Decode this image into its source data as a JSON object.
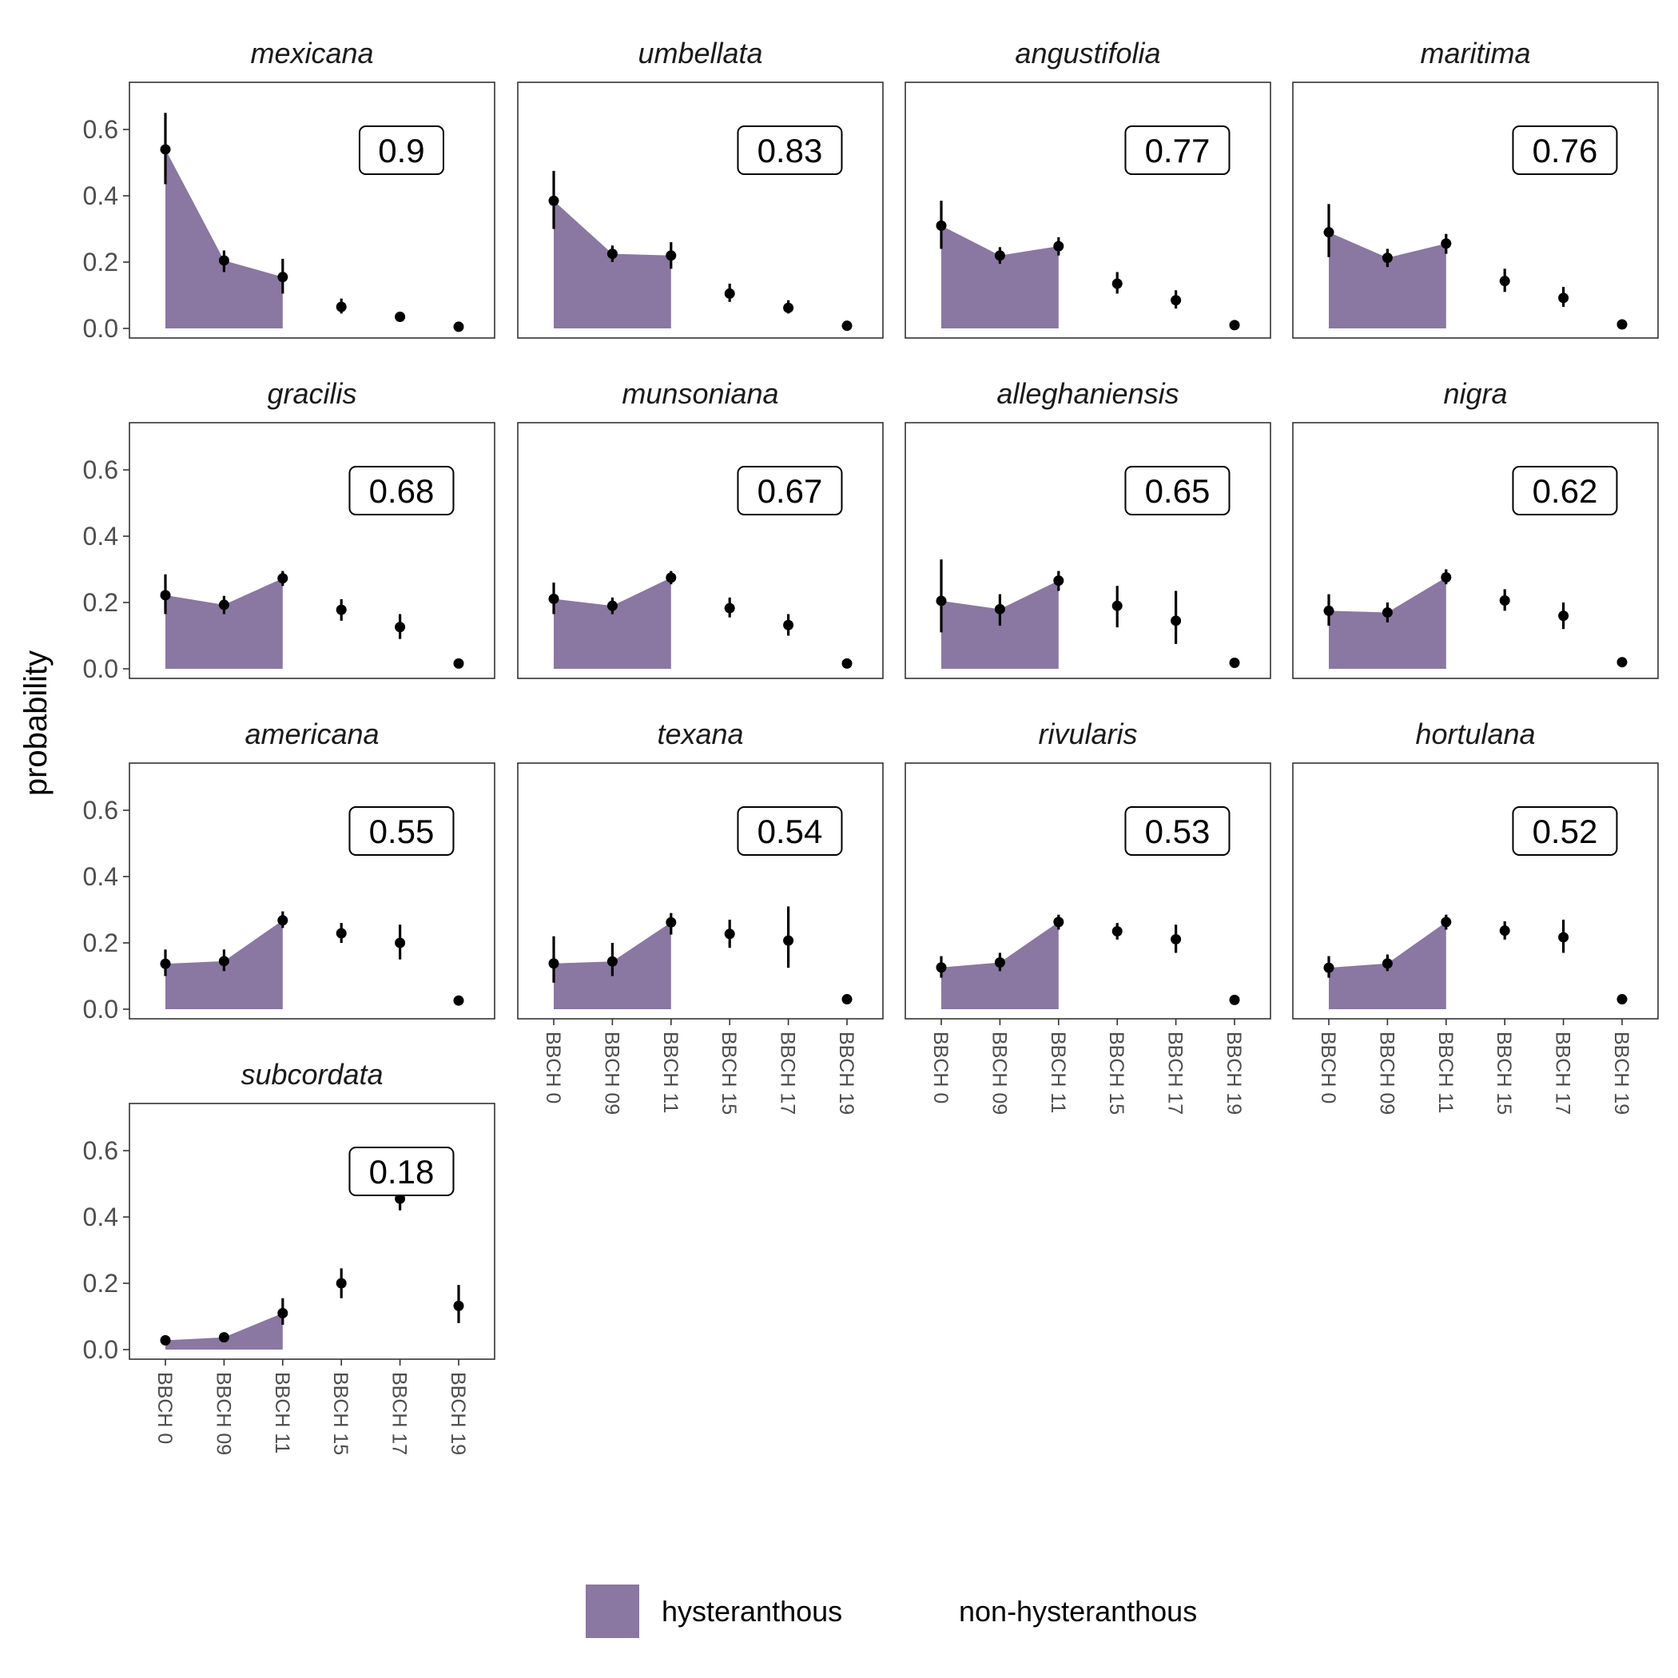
{
  "chart_data": {
    "type": "area",
    "ylabel": "probability",
    "ylim": [
      0,
      0.67
    ],
    "yticks": [
      "0.0",
      "0.2",
      "0.4",
      "0.6"
    ],
    "categories": [
      "BBCH 0",
      "BBCH 09",
      "BBCH 11",
      "BBCH 15",
      "BBCH 17",
      "BBCH 19"
    ],
    "shaded_through_category": "BBCH 11",
    "legend": {
      "position": "bottom",
      "entries": [
        {
          "label": "hysteranthous",
          "color": "#8a77a2"
        },
        {
          "label": "non-hysteranthous",
          "color": "#ffffff"
        }
      ]
    },
    "panels": [
      {
        "species": "mexicana",
        "annotation": "0.9",
        "mean": [
          0.54,
          0.205,
          0.155,
          0.065,
          0.035,
          0.005
        ],
        "lower": [
          0.435,
          0.17,
          0.105,
          0.045,
          0.03,
          0.004
        ],
        "upper": [
          0.65,
          0.235,
          0.21,
          0.09,
          0.042,
          0.008
        ]
      },
      {
        "species": "umbellata",
        "annotation": "0.83",
        "mean": [
          0.385,
          0.225,
          0.22,
          0.105,
          0.062,
          0.008
        ],
        "lower": [
          0.3,
          0.2,
          0.18,
          0.08,
          0.045,
          0.006
        ],
        "upper": [
          0.475,
          0.25,
          0.26,
          0.135,
          0.085,
          0.01
        ]
      },
      {
        "species": "angustifolia",
        "annotation": "0.77",
        "mean": [
          0.31,
          0.22,
          0.248,
          0.135,
          0.085,
          0.01
        ],
        "lower": [
          0.24,
          0.195,
          0.22,
          0.105,
          0.06,
          0.008
        ],
        "upper": [
          0.385,
          0.245,
          0.275,
          0.17,
          0.115,
          0.013
        ]
      },
      {
        "species": "maritima",
        "annotation": "0.76",
        "mean": [
          0.29,
          0.213,
          0.256,
          0.143,
          0.092,
          0.012
        ],
        "lower": [
          0.215,
          0.185,
          0.225,
          0.11,
          0.065,
          0.009
        ],
        "upper": [
          0.375,
          0.24,
          0.285,
          0.18,
          0.125,
          0.015
        ]
      },
      {
        "species": "gracilis",
        "annotation": "0.68",
        "mean": [
          0.222,
          0.193,
          0.273,
          0.178,
          0.126,
          0.016
        ],
        "lower": [
          0.165,
          0.165,
          0.25,
          0.145,
          0.09,
          0.012
        ],
        "upper": [
          0.285,
          0.22,
          0.295,
          0.21,
          0.165,
          0.02
        ]
      },
      {
        "species": "munsoniana",
        "annotation": "0.67",
        "mean": [
          0.211,
          0.19,
          0.275,
          0.183,
          0.132,
          0.016
        ],
        "lower": [
          0.165,
          0.165,
          0.255,
          0.155,
          0.1,
          0.012
        ],
        "upper": [
          0.26,
          0.215,
          0.295,
          0.215,
          0.165,
          0.02
        ]
      },
      {
        "species": "alleghaniensis",
        "annotation": "0.65",
        "mean": [
          0.205,
          0.18,
          0.266,
          0.19,
          0.145,
          0.018
        ],
        "lower": [
          0.11,
          0.13,
          0.235,
          0.125,
          0.075,
          0.013
        ],
        "upper": [
          0.33,
          0.225,
          0.295,
          0.25,
          0.235,
          0.023
        ]
      },
      {
        "species": "nigra",
        "annotation": "0.62",
        "mean": [
          0.175,
          0.17,
          0.276,
          0.206,
          0.16,
          0.02
        ],
        "lower": [
          0.13,
          0.14,
          0.255,
          0.175,
          0.12,
          0.015
        ],
        "upper": [
          0.225,
          0.2,
          0.3,
          0.24,
          0.2,
          0.025
        ]
      },
      {
        "species": "americana",
        "annotation": "0.55",
        "mean": [
          0.137,
          0.145,
          0.268,
          0.229,
          0.2,
          0.026
        ],
        "lower": [
          0.1,
          0.115,
          0.245,
          0.2,
          0.15,
          0.022
        ],
        "upper": [
          0.18,
          0.18,
          0.295,
          0.26,
          0.255,
          0.03
        ]
      },
      {
        "species": "texana",
        "annotation": "0.54",
        "mean": [
          0.138,
          0.144,
          0.262,
          0.227,
          0.207,
          0.03
        ],
        "lower": [
          0.08,
          0.1,
          0.225,
          0.185,
          0.125,
          0.02
        ],
        "upper": [
          0.22,
          0.2,
          0.29,
          0.27,
          0.31,
          0.045
        ]
      },
      {
        "species": "rivularis",
        "annotation": "0.53",
        "mean": [
          0.126,
          0.141,
          0.263,
          0.235,
          0.211,
          0.028
        ],
        "lower": [
          0.095,
          0.115,
          0.24,
          0.21,
          0.17,
          0.024
        ],
        "upper": [
          0.16,
          0.17,
          0.285,
          0.26,
          0.255,
          0.032
        ]
      },
      {
        "species": "hortulana",
        "annotation": "0.52",
        "mean": [
          0.125,
          0.138,
          0.263,
          0.237,
          0.217,
          0.03
        ],
        "lower": [
          0.095,
          0.115,
          0.24,
          0.21,
          0.17,
          0.026
        ],
        "upper": [
          0.16,
          0.165,
          0.285,
          0.265,
          0.27,
          0.034
        ]
      },
      {
        "species": "subcordata",
        "annotation": "0.18",
        "mean": [
          0.028,
          0.037,
          0.11,
          0.2,
          0.455,
          0.132
        ],
        "lower": [
          0.022,
          0.025,
          0.075,
          0.155,
          0.42,
          0.08
        ],
        "upper": [
          0.034,
          0.05,
          0.155,
          0.245,
          0.49,
          0.195
        ]
      }
    ]
  }
}
